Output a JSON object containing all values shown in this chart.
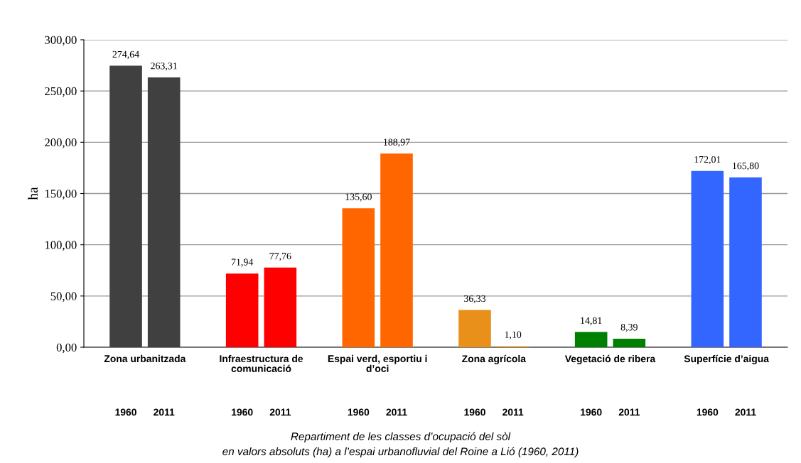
{
  "chart_data": {
    "type": "bar",
    "ylabel": "ha",
    "title": "Repartiment de les classes d’ocupació del sòl\nen valors absoluts (ha) a l’espai urbanofluvial del Roine a Lió (1960, 2011)",
    "categories": [
      "1960",
      "2011",
      "1960",
      "2011",
      "1960",
      "2011",
      "1960",
      "2011",
      "1960",
      "2011",
      "1960",
      "2011"
    ],
    "values": [
      274.64,
      263.31,
      71.94,
      77.76,
      135.6,
      188.97,
      36.33,
      1.1,
      14.81,
      8.39,
      172.01,
      165.8
    ],
    "colors": [
      "#404040",
      "#404040",
      "#ff0000",
      "#ff0000",
      "#ff6600",
      "#ff6600",
      "#e8901a",
      "#e8901a",
      "#008000",
      "#008000",
      "#3366ff",
      "#3366ff"
    ],
    "value_labels": [
      "274,64",
      "263,31",
      "71,94",
      "77,76",
      "135,60",
      "188,97",
      "36,33",
      "1,10",
      "14,81",
      "8,39",
      "172,01",
      "165,80"
    ],
    "annotations": [
      "Zona urbanitzada",
      "Infraestructura de\ncomunicació",
      "Espai verd, esportiu i\nd’oci",
      "Zona agrícola",
      "Vegetació de ribera",
      "Superfície d’aigua"
    ],
    "ylim": [
      0,
      300
    ],
    "yticks": [
      {
        "value": 0,
        "label": "0,00"
      },
      {
        "value": 50,
        "label": "50,00"
      },
      {
        "value": 100,
        "label": "100,00"
      },
      {
        "value": 150,
        "label": "150,00"
      },
      {
        "value": 200,
        "label": "200,00"
      },
      {
        "value": 250,
        "label": "250,00"
      },
      {
        "value": 300,
        "label": "300,00"
      }
    ],
    "grid": "y"
  }
}
